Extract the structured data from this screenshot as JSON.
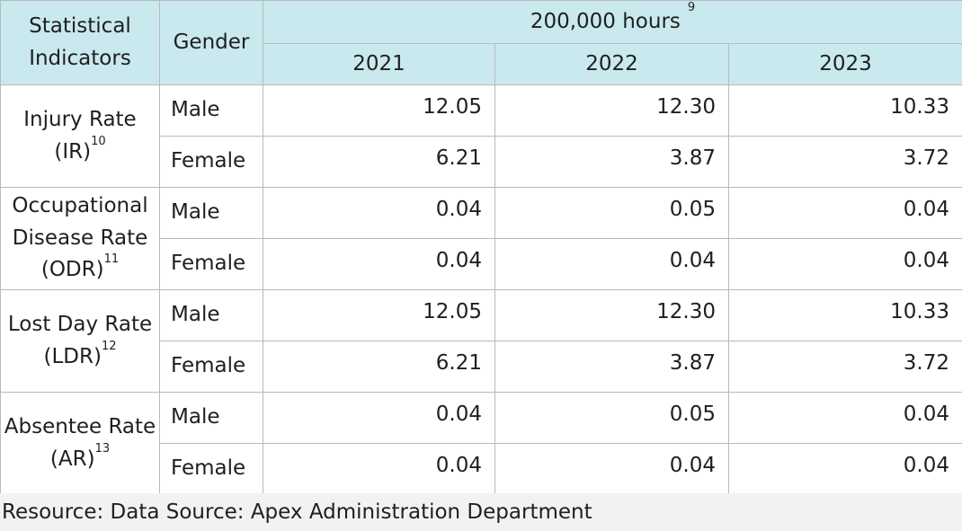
{
  "header": {
    "indicator_col": "Statistical Indicators",
    "gender_col": "Gender",
    "unit": "200,000 hours",
    "unit_note": "9",
    "years": [
      "2021",
      "2022",
      "2023"
    ]
  },
  "rows": [
    {
      "indicator": "Injury Rate (IR)",
      "note": "10",
      "male": {
        "label": "Male",
        "values": [
          "12.05",
          "12.30",
          "10.33"
        ]
      },
      "female": {
        "label": "Female",
        "values": [
          "6.21",
          "3.87",
          "3.72"
        ]
      }
    },
    {
      "indicator": "Occupational Disease Rate (ODR)",
      "note": "11",
      "male": {
        "label": "Male",
        "values": [
          "0.04",
          "0.05",
          "0.04"
        ]
      },
      "female": {
        "label": "Female",
        "values": [
          "0.04",
          "0.04",
          "0.04"
        ]
      }
    },
    {
      "indicator": "Lost Day Rate (LDR)",
      "note": "12",
      "male": {
        "label": "Male",
        "values": [
          "12.05",
          "12.30",
          "10.33"
        ]
      },
      "female": {
        "label": "Female",
        "values": [
          "6.21",
          "3.87",
          "3.72"
        ]
      }
    },
    {
      "indicator": "Absentee Rate (AR)",
      "note": "13",
      "male": {
        "label": "Male",
        "values": [
          "0.04",
          "0.05",
          "0.04"
        ]
      },
      "female": {
        "label": "Female",
        "values": [
          "0.04",
          "0.04",
          "0.04"
        ]
      }
    }
  ],
  "footer": "Resource: Data Source: Apex Administration Department",
  "colors": {
    "header_bg": "#c9e9ee",
    "footer_bg": "#f2f2f2",
    "border": "#b9b9b9"
  }
}
